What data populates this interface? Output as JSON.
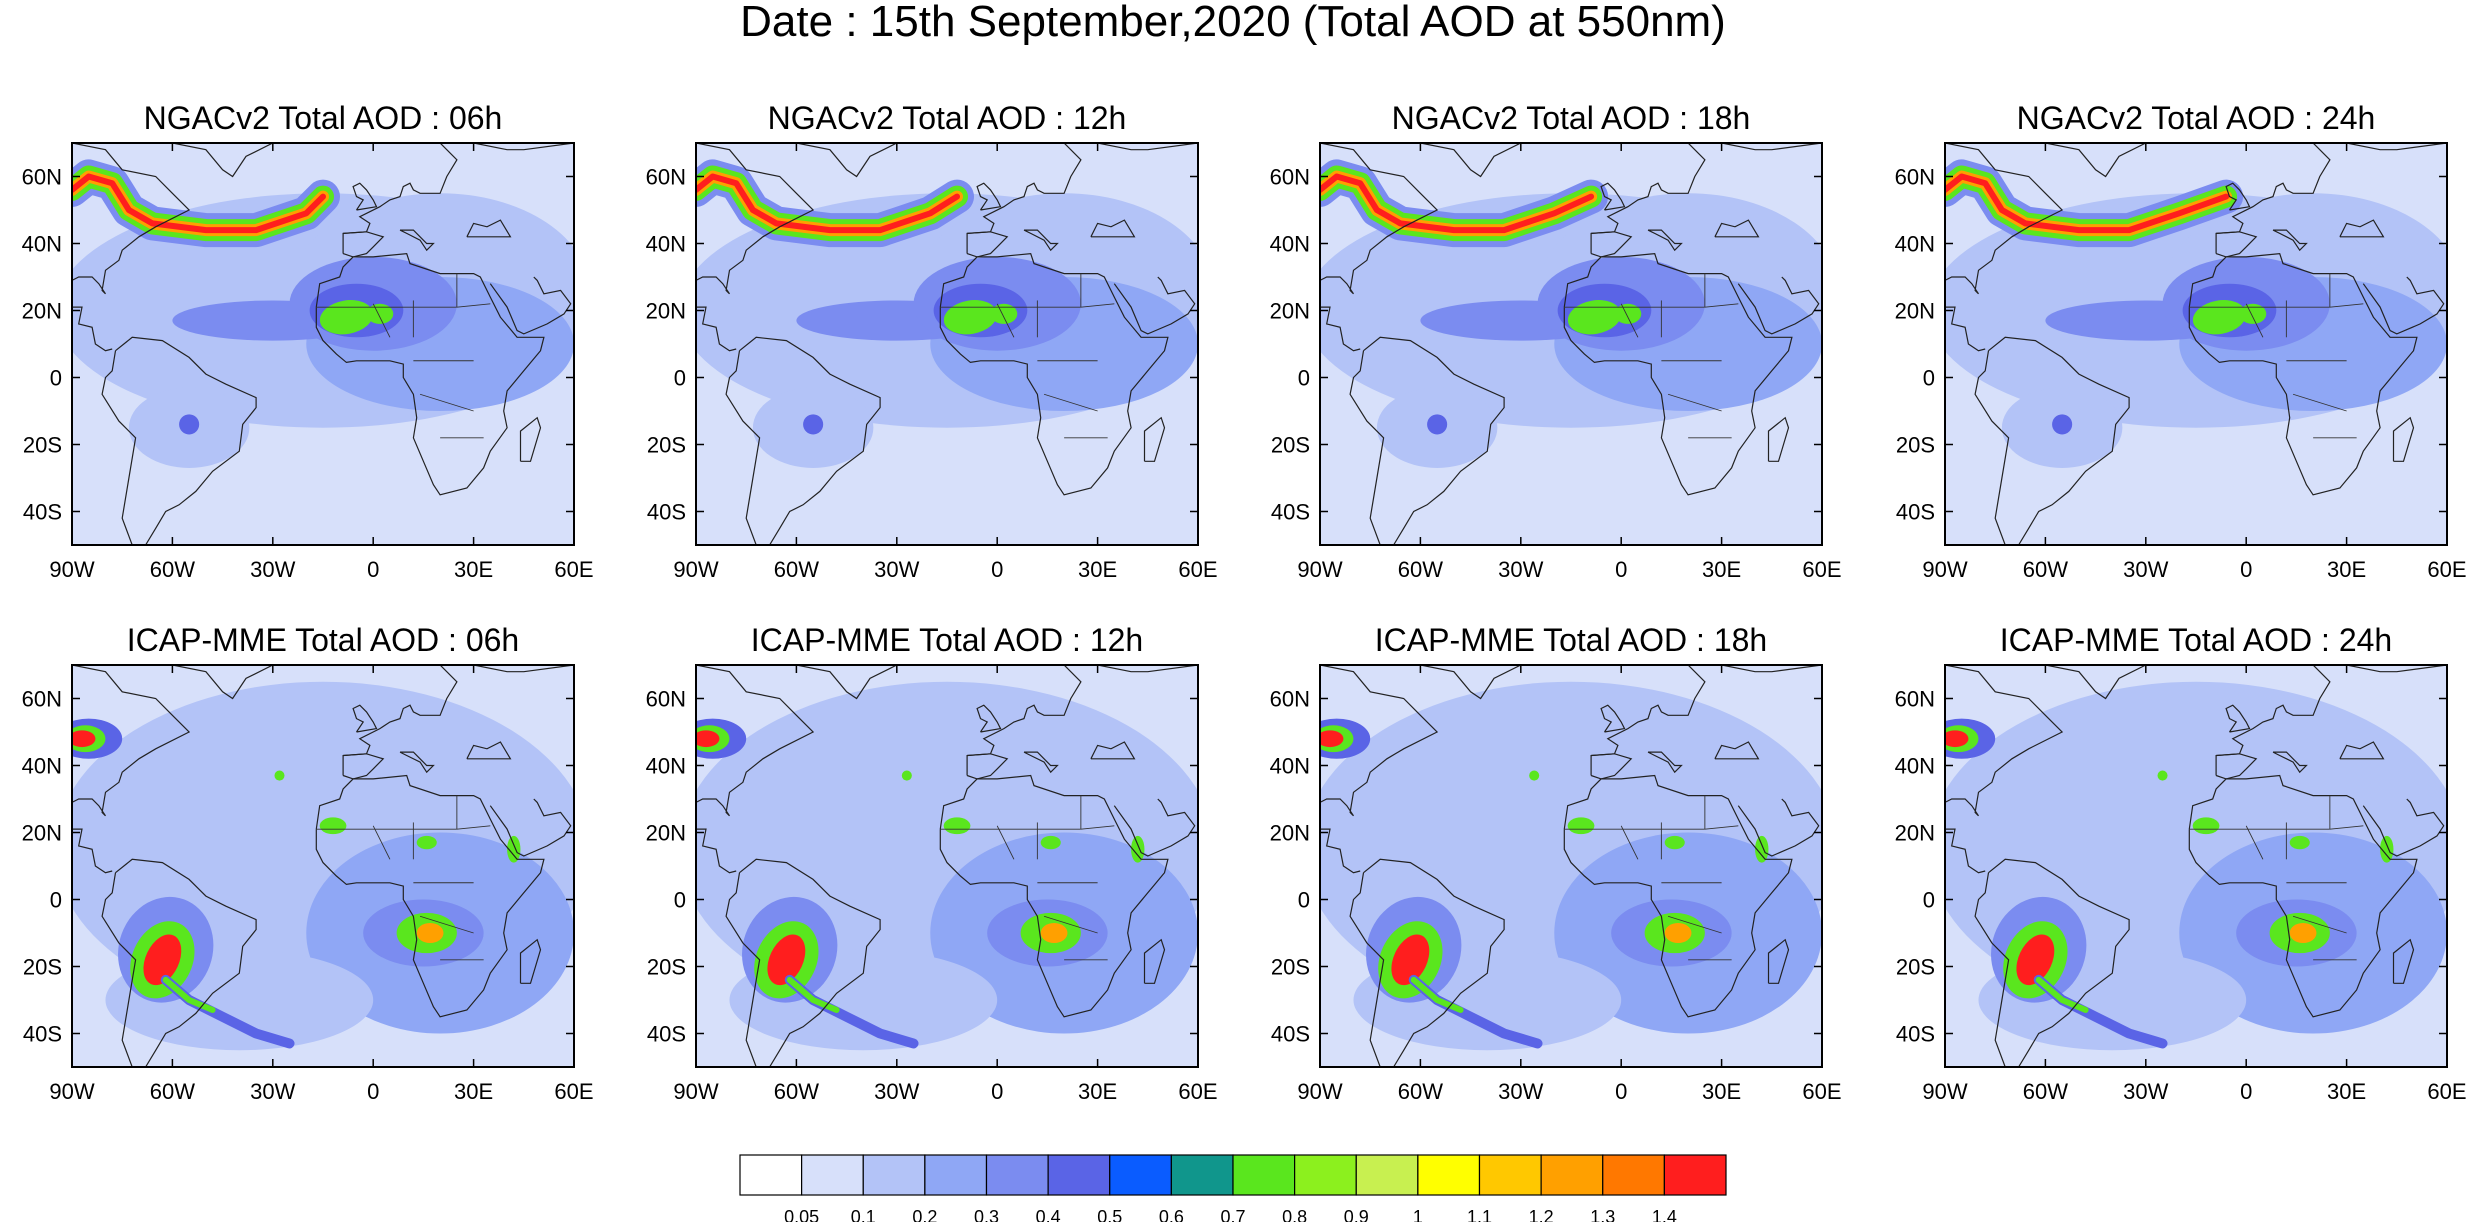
{
  "title": "Date : 15th September,2020 (Total AOD at 550nm)",
  "map": {
    "lat_labels": [
      "60N",
      "40N",
      "20N",
      "0",
      "20S",
      "40S"
    ],
    "lat_values": [
      60,
      40,
      20,
      0,
      -20,
      -40
    ],
    "lon_labels": [
      "90W",
      "60W",
      "30W",
      "0",
      "30E",
      "60E"
    ],
    "lon_values": [
      -90,
      -60,
      -30,
      0,
      30,
      60
    ],
    "lat_range": [
      -50,
      70
    ],
    "lon_range": [
      -90,
      60
    ]
  },
  "rows": [
    {
      "model": "NGACv2",
      "panels": [
        {
          "title": "NGACv2 Total AOD : 06h"
        },
        {
          "title": "NGACv2 Total AOD : 12h"
        },
        {
          "title": "NGACv2 Total AOD : 18h"
        },
        {
          "title": "NGACv2 Total AOD : 24h"
        }
      ]
    },
    {
      "model": "ICAP-MME",
      "panels": [
        {
          "title": "ICAP-MME Total AOD : 06h"
        },
        {
          "title": "ICAP-MME Total AOD : 12h"
        },
        {
          "title": "ICAP-MME Total AOD : 18h"
        },
        {
          "title": "ICAP-MME Total AOD : 24h"
        }
      ]
    }
  ],
  "colorbar": {
    "labels": [
      "0.05",
      "0.1",
      "0.2",
      "0.3",
      "0.4",
      "0.5",
      "0.6",
      "0.7",
      "0.8",
      "0.9",
      "1",
      "1.1",
      "1.2",
      "1.3",
      "1.4"
    ],
    "colors": [
      "#ffffff",
      "#d7e0fa",
      "#b3c3f7",
      "#8fa7f5",
      "#7b8cf0",
      "#5a64e6",
      "#0a5cff",
      "#10968c",
      "#5ae61e",
      "#8cf01e",
      "#c8f050",
      "#ffff00",
      "#ffc800",
      "#ffa000",
      "#ff7800",
      "#ff1e1e"
    ]
  }
}
